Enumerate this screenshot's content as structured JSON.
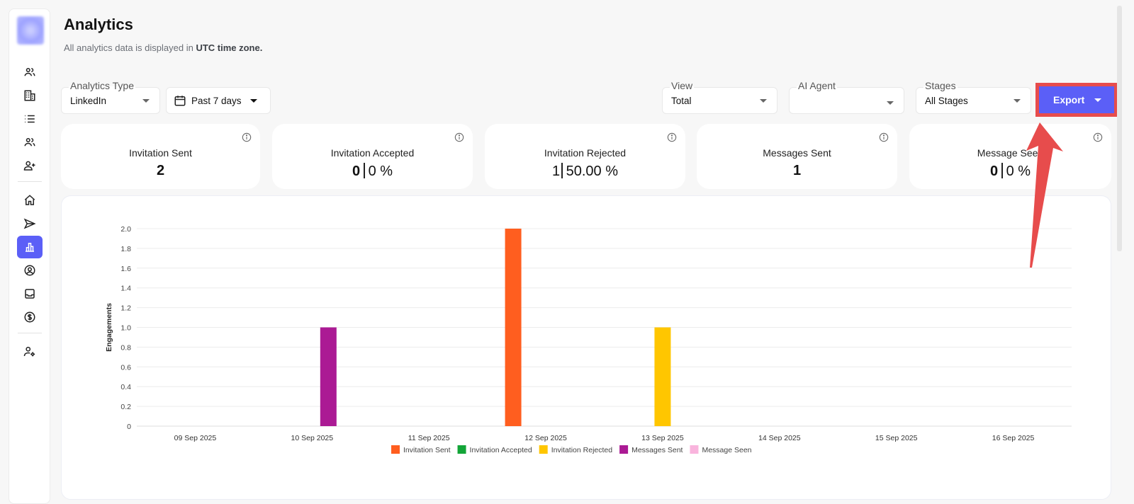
{
  "header": {
    "title": "Analytics",
    "subtitle_prefix": "All analytics data is displayed in ",
    "subtitle_bold": "UTC time zone."
  },
  "sidebar": {
    "items": [
      {
        "icon": "contacts-icon",
        "label": "Contacts"
      },
      {
        "icon": "companies-icon",
        "label": "Companies"
      },
      {
        "icon": "lists-icon",
        "label": "Lists"
      },
      {
        "icon": "team-icon",
        "label": "Team"
      },
      {
        "icon": "add-user-icon",
        "label": "Add User"
      },
      {
        "icon": "home-icon",
        "label": "Home"
      },
      {
        "icon": "send-icon",
        "label": "Campaigns"
      },
      {
        "icon": "analytics-icon",
        "label": "Analytics",
        "active": true
      },
      {
        "icon": "profile-icon",
        "label": "Profile"
      },
      {
        "icon": "inbox-icon",
        "label": "Inbox"
      },
      {
        "icon": "billing-icon",
        "label": "Billing"
      },
      {
        "icon": "user-settings-icon",
        "label": "User Settings"
      }
    ]
  },
  "filters": {
    "analytics_type": {
      "label": "Analytics Type",
      "value": "LinkedIn"
    },
    "date_range": {
      "value": "Past 7 days"
    },
    "view": {
      "label": "View",
      "value": "Total"
    },
    "ai_agent": {
      "label": "AI Agent",
      "value": ""
    },
    "stages": {
      "label": "Stages",
      "value": "All Stages"
    },
    "export_label": "Export"
  },
  "stats": [
    {
      "label": "Invitation Sent",
      "value": "2",
      "percent": null
    },
    {
      "label": "Invitation Accepted",
      "value": "0",
      "percent": "0 %"
    },
    {
      "label": "Invitation Rejected",
      "value": "1",
      "percent": "50.00 %"
    },
    {
      "label": "Messages Sent",
      "value": "1",
      "percent": null
    },
    {
      "label": "Message Seen",
      "value": "0",
      "percent": "0 %"
    }
  ],
  "chart_data": {
    "type": "bar",
    "title": "",
    "xlabel": "",
    "ylabel": "Engagements",
    "ylim": [
      0,
      2.0
    ],
    "yticks": [
      "0",
      "0.2",
      "0.4",
      "0.6",
      "0.8",
      "1.0",
      "1.2",
      "1.4",
      "1.6",
      "1.8",
      "2.0"
    ],
    "grid": true,
    "legend_position": "bottom",
    "categories": [
      "09 Sep 2025",
      "10 Sep 2025",
      "11 Sep 2025",
      "12 Sep 2025",
      "13 Sep 2025",
      "14 Sep 2025",
      "15 Sep 2025",
      "16 Sep 2025"
    ],
    "series": [
      {
        "name": "Invitation Sent",
        "color": "#ff5e1f",
        "values": [
          0,
          0,
          0,
          2,
          0,
          0,
          0,
          0
        ]
      },
      {
        "name": "Invitation Accepted",
        "color": "#13a538",
        "values": [
          0,
          0,
          0,
          0,
          0,
          0,
          0,
          0
        ]
      },
      {
        "name": "Invitation Rejected",
        "color": "#ffc600",
        "values": [
          0,
          0,
          0,
          0,
          1,
          0,
          0,
          0
        ]
      },
      {
        "name": "Messages Sent",
        "color": "#ab1a94",
        "values": [
          0,
          1,
          0,
          0,
          0,
          0,
          0,
          0
        ]
      },
      {
        "name": "Message Seen",
        "color": "#f9b4dd",
        "values": [
          0,
          0,
          0,
          0,
          0,
          0,
          0,
          0
        ]
      }
    ]
  },
  "colors": {
    "accent": "#5b5ff7",
    "annotation": "#e74c4c"
  }
}
